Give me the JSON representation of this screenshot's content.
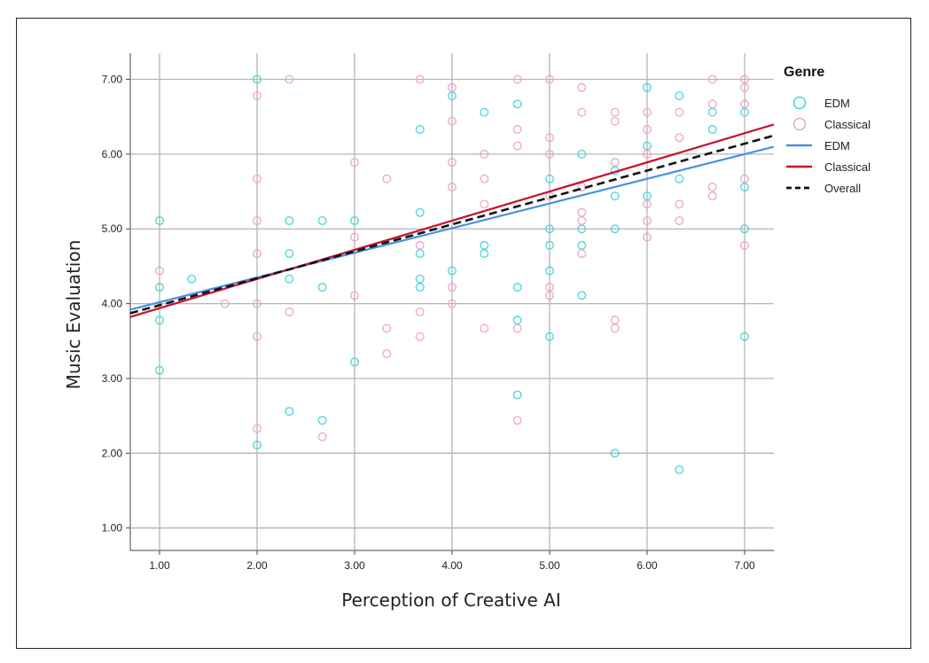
{
  "chart_data": {
    "type": "scatter",
    "xlabel": "Perception of Creative AI",
    "ylabel": "Music Evaluation",
    "xlim": [
      0.7,
      7.3
    ],
    "ylim": [
      0.7,
      7.35
    ],
    "xticks": [
      "1.00",
      "2.00",
      "3.00",
      "4.00",
      "5.00",
      "6.00",
      "7.00"
    ],
    "yticks": [
      "1.00",
      "2.00",
      "3.00",
      "4.00",
      "5.00",
      "6.00",
      "7.00"
    ],
    "grid": true,
    "legend_placement": "right",
    "legend_title": "Genre",
    "colors": {
      "EDM_points": "#3fd3dc",
      "Classical_points": "#f0a0c8",
      "EDM_line": "#4a90e2",
      "Classical_line": "#c8102e",
      "Overall_line": "#111111"
    },
    "legend": [
      {
        "label": "EDM",
        "kind": "circle",
        "color": "#3fd3dc"
      },
      {
        "label": "Classical",
        "kind": "circle",
        "color": "#f0a0c8"
      },
      {
        "label": "EDM",
        "kind": "line",
        "color": "#4a90e2"
      },
      {
        "label": "Classical",
        "kind": "line",
        "color": "#c8102e"
      },
      {
        "label": "Overall",
        "kind": "dashed",
        "color": "#111111"
      }
    ],
    "series": [
      {
        "name": "EDM",
        "kind": "points",
        "x": [
          1.0,
          1.0,
          1.0,
          1.0,
          1.33,
          2.0,
          2.0,
          2.33,
          2.33,
          2.33,
          2.33,
          2.67,
          2.67,
          2.67,
          3.0,
          3.0,
          3.67,
          3.67,
          3.67,
          3.67,
          3.67,
          4.0,
          4.0,
          4.33,
          4.33,
          4.33,
          4.67,
          4.67,
          4.67,
          4.67,
          5.0,
          5.0,
          5.0,
          5.0,
          5.0,
          5.33,
          5.33,
          5.33,
          5.33,
          5.67,
          5.67,
          5.67,
          5.67,
          6.0,
          6.0,
          6.0,
          6.33,
          6.33,
          6.33,
          6.67,
          6.67,
          7.0,
          7.0,
          7.0,
          7.0
        ],
        "y": [
          5.11,
          4.22,
          3.78,
          3.11,
          4.33,
          7.0,
          2.11,
          5.11,
          4.67,
          4.33,
          2.56,
          5.11,
          4.22,
          2.44,
          5.11,
          3.22,
          6.33,
          5.22,
          4.67,
          4.33,
          4.22,
          4.44,
          6.78,
          6.56,
          4.78,
          4.67,
          6.67,
          4.22,
          3.78,
          2.78,
          5.67,
          4.78,
          4.44,
          3.56,
          5.0,
          4.11,
          4.78,
          5.0,
          6.0,
          5.0,
          5.44,
          5.78,
          2.0,
          6.89,
          5.44,
          6.11,
          6.78,
          5.67,
          1.78,
          6.33,
          6.56,
          6.56,
          5.56,
          5.0,
          3.56
        ]
      },
      {
        "name": "Classical",
        "kind": "points",
        "x": [
          1.0,
          1.67,
          2.0,
          2.0,
          2.0,
          2.0,
          2.0,
          2.0,
          2.0,
          2.33,
          2.33,
          2.67,
          3.0,
          3.0,
          3.0,
          3.33,
          3.33,
          3.33,
          3.67,
          3.67,
          3.67,
          3.67,
          4.0,
          4.0,
          4.0,
          4.0,
          4.0,
          4.0,
          4.33,
          4.33,
          4.33,
          4.33,
          4.67,
          4.67,
          4.67,
          4.67,
          4.67,
          5.0,
          5.0,
          5.0,
          5.0,
          5.0,
          5.0,
          5.33,
          5.33,
          5.33,
          5.33,
          5.33,
          5.33,
          5.67,
          5.67,
          5.67,
          5.67,
          5.67,
          6.0,
          6.0,
          6.0,
          6.0,
          6.0,
          6.0,
          6.33,
          6.33,
          6.33,
          6.33,
          6.67,
          6.67,
          6.67,
          6.67,
          7.0,
          7.0,
          7.0,
          7.0,
          7.0
        ],
        "y": [
          4.44,
          4.0,
          6.78,
          5.67,
          5.11,
          4.67,
          4.0,
          3.56,
          2.33,
          7.0,
          3.89,
          2.22,
          5.89,
          4.89,
          4.11,
          5.67,
          3.67,
          3.33,
          7.0,
          4.78,
          3.89,
          3.56,
          6.89,
          6.44,
          5.89,
          5.56,
          4.22,
          4.0,
          6.0,
          5.67,
          5.33,
          3.67,
          7.0,
          6.33,
          6.11,
          3.67,
          2.44,
          7.0,
          6.22,
          6.0,
          5.44,
          4.22,
          4.11,
          6.89,
          6.56,
          5.56,
          5.22,
          4.67,
          5.11,
          6.56,
          6.44,
          5.89,
          3.78,
          3.67,
          6.56,
          6.33,
          6.0,
          5.33,
          5.11,
          4.89,
          6.56,
          6.22,
          5.33,
          5.11,
          7.0,
          6.67,
          5.56,
          5.44,
          7.0,
          6.89,
          6.67,
          5.67,
          4.78
        ]
      },
      {
        "name": "EDM",
        "kind": "fit",
        "intercept": 3.69,
        "slope": 0.33
      },
      {
        "name": "Classical",
        "kind": "fit",
        "intercept": 3.55,
        "slope": 0.39
      },
      {
        "name": "Overall",
        "kind": "fit",
        "intercept": 3.62,
        "slope": 0.36,
        "dashed": true
      }
    ]
  }
}
